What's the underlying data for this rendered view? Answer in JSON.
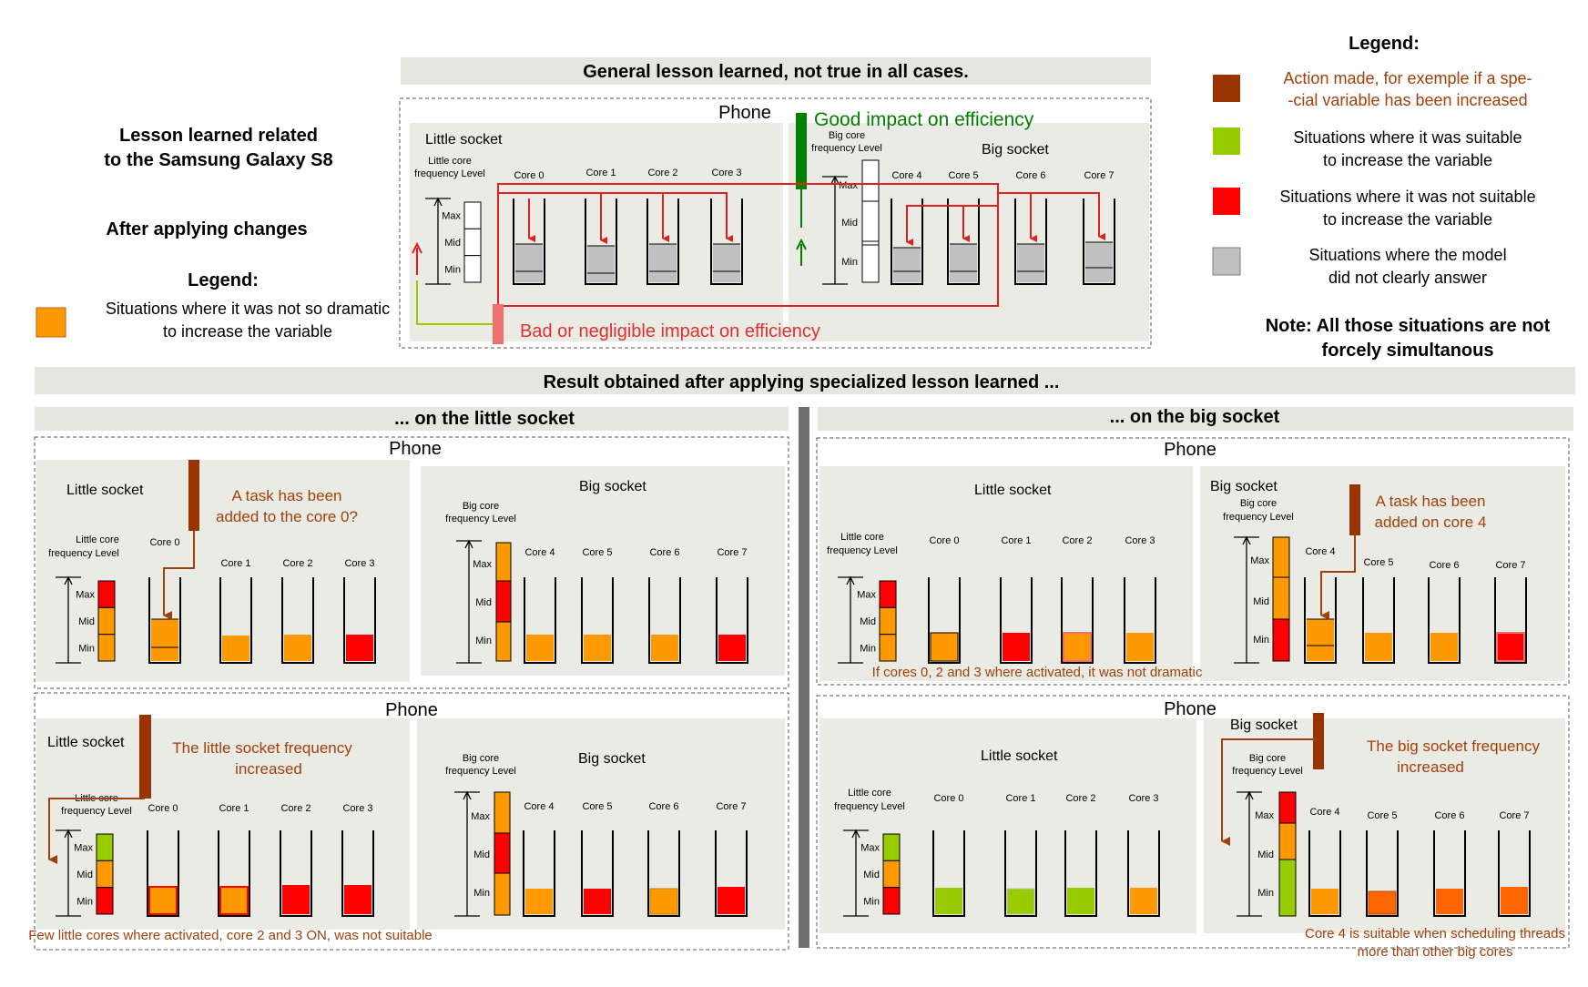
{
  "colors": {
    "action": "#993300",
    "suitable": "#99cc00",
    "not_suitable": "#ff0000",
    "unclear": "#c0c0c0",
    "not_dramatic": "#ff9900",
    "orange_red": "#ff6600",
    "good": "#008000",
    "bad": "#e03030",
    "brown_text": "#a0400a",
    "panel": "#ebebe6",
    "banner": "#e6e6e0"
  },
  "general_title": "General lesson learned, not true in all cases.",
  "lesson_title_1": "Lesson learned related",
  "lesson_title_2": "to the Samsung Galaxy S8",
  "after_changes": "After applying changes",
  "left_legend": {
    "title": "Legend:",
    "item_1": "Situations where it was not so dramatic",
    "item_2": "to increase the variable"
  },
  "right_legend": {
    "title": "Legend:",
    "action_1": "Action made, for exemple if a spe-",
    "action_2": "-cial variable has been increased",
    "suitable_1": "Situations where it was suitable",
    "suitable_2": "to increase the variable",
    "not_suitable_1": "Situations where it was not suitable",
    "not_suitable_2": "to increase the variable",
    "unclear_1": "Situations where the model",
    "unclear_2": "did not clearly answer",
    "note_1": "Note: All those situations are not",
    "note_2": "forcely simultanous"
  },
  "result_banner": "Result obtained after applying specialized lesson learned ...",
  "little_banner": "... on the little socket",
  "big_banner": "... on the big socket",
  "labels": {
    "phone": "Phone",
    "little_socket": "Little socket",
    "big_socket": "Big socket",
    "little_freq_1": "Little core",
    "little_freq_2": "frequency Level",
    "big_freq_1": "Big core",
    "big_freq_2": "frequency Level",
    "max": "Max",
    "mid": "Mid",
    "min": "Min",
    "core0": "Core 0",
    "core1": "Core 1",
    "core2": "Core 2",
    "core3": "Core 3",
    "core4": "Core 4",
    "core5": "Core 5",
    "core6": "Core 6",
    "core7": "Core 7"
  },
  "top_good": "Good impact on efficiency",
  "top_bad": "Bad or negligible impact on efficiency",
  "p1_note_1": "A task has been",
  "p1_note_2": "added to the core 0?",
  "p2_note_1": "The little socket frequency",
  "p2_note_2": "increased",
  "p2_caption": "Few little cores where activated, core 2 and 3 ON, was not suitable",
  "p3_note_1": "A task has been",
  "p3_note_2": "added on core 4",
  "p3_caption": "If cores 0, 2 and 3 where activated, it was not dramatic",
  "p4_note_1": "The big  socket frequency",
  "p4_note_2": "increased",
  "p4_caption_1": "Core 4 is suitable when scheduling threads",
  "p4_caption_2": "more than other big cores"
}
